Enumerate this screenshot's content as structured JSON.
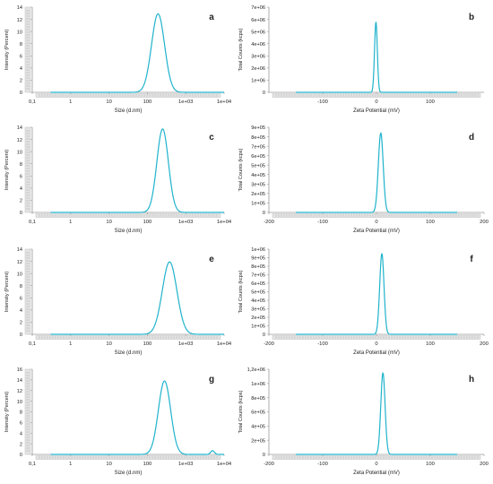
{
  "colors": {
    "curve": "#1fb3cc",
    "axis": "#9a9a9a",
    "scroll": "#cfcfcf",
    "text": "#222222"
  },
  "chart_data": [
    {
      "panel_label": "a",
      "type": "line",
      "xscale": "log",
      "xlim": [
        0.1,
        10000
      ],
      "xticks": [
        "0,1",
        "1",
        "10",
        "100",
        "1e+03",
        "1e+04"
      ],
      "xtick_values": [
        0.1,
        1,
        10,
        100,
        1000,
        10000
      ],
      "ylim": [
        0,
        14
      ],
      "yticks": [
        "0",
        "2",
        "4",
        "6",
        "8",
        "10",
        "12",
        "14"
      ],
      "xlabel": "Size (d.nm)",
      "ylabel": "Intensity (Percent)",
      "x_range": [
        0.3,
        10000
      ],
      "series": [
        {
          "peaks": [
            {
              "x": 190,
              "y": 12.9,
              "log_width": 0.17
            }
          ]
        }
      ]
    },
    {
      "panel_label": "b",
      "type": "line",
      "xscale": "linear",
      "xlim": [
        -200,
        200
      ],
      "xticks": [
        "-100",
        "0",
        "100"
      ],
      "xtick_values": [
        -100,
        0,
        100
      ],
      "ylim": [
        0,
        7000000
      ],
      "yticks": [
        "0",
        "1e+06",
        "2e+06",
        "3e+06",
        "4e+06",
        "5e+06",
        "6e+06",
        "7e+06"
      ],
      "xlabel": "Zeta Potential (mV)",
      "ylabel": "Total Counts (kcps)",
      "x_range": [
        -150,
        150
      ],
      "series": [
        {
          "peaks": [
            {
              "x": -1,
              "y": 5800000,
              "width": 2.6
            }
          ]
        }
      ]
    },
    {
      "panel_label": "c",
      "type": "line",
      "xscale": "log",
      "xlim": [
        0.1,
        10000
      ],
      "xticks": [
        "0,1",
        "1",
        "10",
        "100",
        "1e+03",
        "1e+04"
      ],
      "xtick_values": [
        0.1,
        1,
        10,
        100,
        1000,
        10000
      ],
      "ylim": [
        0,
        15
      ],
      "yticks": [
        "0",
        "2",
        "4",
        "6",
        "8",
        "10",
        "12",
        "14"
      ],
      "xlabel": "Size (d.nm)",
      "ylabel": "Intensity (Percent)",
      "x_range": [
        0.3,
        10000
      ],
      "series": [
        {
          "peaks": [
            {
              "x": 250,
              "y": 14.7,
              "log_width": 0.15
            }
          ]
        }
      ]
    },
    {
      "panel_label": "d",
      "type": "line",
      "xscale": "linear",
      "xlim": [
        -200,
        200
      ],
      "xticks": [
        "-200",
        "-100",
        "0",
        "100",
        "200"
      ],
      "xtick_values": [
        -200,
        -100,
        0,
        100,
        200
      ],
      "ylim": [
        0,
        900000
      ],
      "yticks": [
        "0",
        "1e+05",
        "2e+05",
        "3e+05",
        "4e+05",
        "5e+05",
        "6e+05",
        "7e+05",
        "8e+05",
        "9e+05"
      ],
      "xlabel": "Zeta Potential (mV)",
      "ylabel": "Total Counts (kcps)",
      "x_range": [
        -150,
        150
      ],
      "series": [
        {
          "peaks": [
            {
              "x": 8,
              "y": 840000,
              "width": 4.5
            }
          ]
        }
      ]
    },
    {
      "panel_label": "e",
      "type": "line",
      "xscale": "log",
      "xlim": [
        0.1,
        10000
      ],
      "xticks": [
        "0,1",
        "1",
        "10",
        "100",
        "1e+03",
        "1e+04"
      ],
      "xtick_values": [
        0.1,
        1,
        10,
        100,
        1000,
        10000
      ],
      "ylim": [
        0,
        14
      ],
      "yticks": [
        "0",
        "2",
        "4",
        "6",
        "8",
        "10",
        "12",
        "14"
      ],
      "xlabel": "Size (d.nm)",
      "ylabel": "Intensity (Percent)",
      "x_range": [
        0.3,
        10000
      ],
      "series": [
        {
          "peaks": [
            {
              "x": 380,
              "y": 11.9,
              "log_width": 0.19
            }
          ]
        }
      ]
    },
    {
      "panel_label": "f",
      "type": "line",
      "xscale": "linear",
      "xlim": [
        -200,
        200
      ],
      "xticks": [
        "-200",
        "-100",
        "0",
        "100",
        "200"
      ],
      "xtick_values": [
        -200,
        -100,
        0,
        100,
        200
      ],
      "ylim": [
        0,
        1000000
      ],
      "yticks": [
        "0",
        "1e+05",
        "2e+05",
        "3e+05",
        "4e+05",
        "5e+05",
        "6e+05",
        "7e+05",
        "8e+05",
        "9e+05",
        "1e+06"
      ],
      "xlabel": "Zeta Potential (mV)",
      "ylabel": "Total Counts (kcps)",
      "x_range": [
        -150,
        150
      ],
      "series": [
        {
          "peaks": [
            {
              "x": 10,
              "y": 950000,
              "width": 4.0
            }
          ]
        }
      ]
    },
    {
      "panel_label": "g",
      "type": "line",
      "xscale": "log",
      "xlim": [
        0.1,
        10000
      ],
      "xticks": [
        "0,1",
        "1",
        "10",
        "100",
        "1e+03",
        "1e+04"
      ],
      "xtick_values": [
        0.1,
        1,
        10,
        100,
        1000,
        10000
      ],
      "ylim": [
        0,
        16
      ],
      "yticks": [
        "0",
        "2",
        "4",
        "6",
        "8",
        "10",
        "12",
        "14",
        "16"
      ],
      "xlabel": "Size (d.nm)",
      "ylabel": "Intensity (Percent)",
      "x_range": [
        0.3,
        10000
      ],
      "series": [
        {
          "peaks": [
            {
              "x": 280,
              "y": 13.8,
              "log_width": 0.16
            },
            {
              "x": 5000,
              "y": 0.7,
              "log_width": 0.05
            }
          ]
        }
      ]
    },
    {
      "panel_label": "h",
      "type": "line",
      "xscale": "linear",
      "xlim": [
        -200,
        200
      ],
      "xticks": [
        "-200",
        "-100",
        "0",
        "100",
        "200"
      ],
      "xtick_values": [
        -200,
        -100,
        0,
        100,
        200
      ],
      "ylim": [
        0,
        1200000
      ],
      "yticks": [
        "0",
        "2e+05",
        "4e+05",
        "6e+05",
        "8e+05",
        "1e+06",
        "1,2e+06"
      ],
      "xlabel": "Zeta Potential (mV)",
      "ylabel": "Total Counts (kcps)",
      "x_range": [
        -150,
        150
      ],
      "series": [
        {
          "peaks": [
            {
              "x": 12,
              "y": 1150000,
              "width": 4.0
            }
          ]
        }
      ]
    }
  ]
}
